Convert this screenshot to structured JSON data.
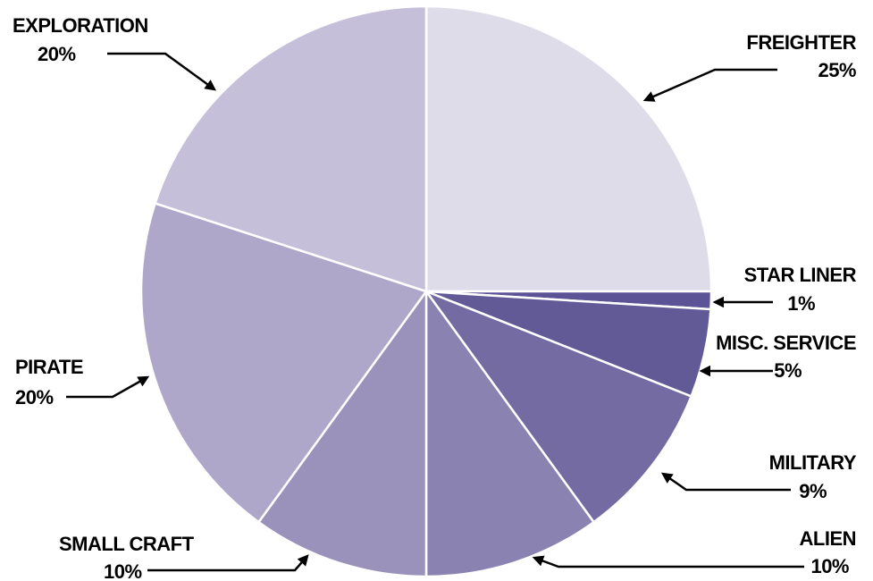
{
  "chart_data": {
    "type": "pie",
    "title": "",
    "slices": [
      {
        "label": "FREIGHTER",
        "value": 25,
        "pct_label": "25%",
        "color": "#dfdcea"
      },
      {
        "label": "STAR LINER",
        "value": 1,
        "pct_label": "1%",
        "color": "#5c5296"
      },
      {
        "label": "MISC. SERVICE",
        "value": 5,
        "pct_label": "5%",
        "color": "#625a97"
      },
      {
        "label": "MILITARY",
        "value": 9,
        "pct_label": "9%",
        "color": "#746ba3"
      },
      {
        "label": "ALIEN",
        "value": 10,
        "pct_label": "10%",
        "color": "#8a82b1"
      },
      {
        "label": "SMALL CRAFT",
        "value": 10,
        "pct_label": "10%",
        "color": "#9a92bb"
      },
      {
        "label": "PIRATE",
        "value": 20,
        "pct_label": "20%",
        "color": "#aea7c9"
      },
      {
        "label": "EXPLORATION",
        "value": 20,
        "pct_label": "20%",
        "color": "#c5bfd9"
      }
    ],
    "start_angle_deg": 0,
    "direction": "clockwise",
    "legend": "none",
    "label_style": "callout labels with arrow leader lines"
  }
}
